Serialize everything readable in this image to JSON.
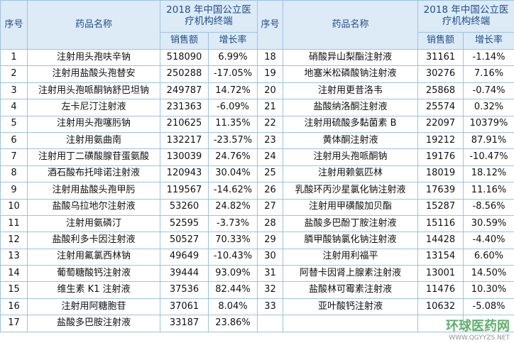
{
  "header": {
    "no": "序号",
    "name": "药品名称",
    "terminal": "2018 年中国公立医疗机构终端",
    "sales": "销售额",
    "growth": "增长率"
  },
  "left_rows": [
    [
      "1",
      "注射用头孢呋辛钠",
      518090,
      "6.99%"
    ],
    [
      "2",
      "注射用盐酸头孢替安",
      250288,
      "-17.05%"
    ],
    [
      "3",
      "注射用头孢哌酮钠舒巴坦钠",
      249787,
      "14.72%"
    ],
    [
      "4",
      "左卡尼汀注射液",
      231363,
      "-6.09%"
    ],
    [
      "5",
      "注射用头孢噻肟钠",
      210625,
      "11.35%"
    ],
    [
      "6",
      "注射用氨曲南",
      132217,
      "-23.57%"
    ],
    [
      "7",
      "注射用丁二磺酸腺苷蛋氨酸",
      130039,
      "24.76%"
    ],
    [
      "8",
      "酒石酸布托啡诺注射液",
      120943,
      "30.04%"
    ],
    [
      "9",
      "注射用盐酸头孢甲肟",
      119567,
      "-14.62%"
    ],
    [
      "10",
      "盐酸乌拉地尔注射液",
      53260,
      "24.82%"
    ],
    [
      "11",
      "注射用氨磷汀",
      52595,
      "-3.73%"
    ],
    [
      "12",
      "盐酸利多卡因注射液",
      50527,
      "70.33%"
    ],
    [
      "13",
      "注射用氟氯西林钠",
      49649,
      "-10.43%"
    ],
    [
      "14",
      "葡萄糖酸钙注射液",
      39444,
      "93.09%"
    ],
    [
      "15",
      "维生素 K1 注射液",
      37536,
      "82.44%"
    ],
    [
      "16",
      "注射用阿糖胞苷",
      37061,
      "8.04%"
    ],
    [
      "17",
      "盐酸多巴胺注射液",
      33187,
      "23.86%"
    ]
  ],
  "right_rows": [
    [
      "18",
      "硝酸异山梨酯注射液",
      31161,
      "-1.14%"
    ],
    [
      "19",
      "地塞米松磷酸钠注射液",
      30276,
      "7.16%"
    ],
    [
      "20",
      "注射用更昔洛韦",
      25868,
      "-0.74%"
    ],
    [
      "21",
      "盐酸纳洛酮注射液",
      25574,
      "0.32%"
    ],
    [
      "22",
      "注射用硫酸多黏菌素 B",
      22097,
      "10379%"
    ],
    [
      "23",
      "黄体酮注射液",
      19212,
      "87.91%"
    ],
    [
      "24",
      "注射用头孢哌酮钠",
      19176,
      "-10.47%"
    ],
    [
      "25",
      "注射用赖氨匹林",
      18019,
      "18.12%"
    ],
    [
      "26",
      "乳酸环丙沙星氯化钠注射液",
      17639,
      "11.16%"
    ],
    [
      "27",
      "注射用甲磺酸加贝酯",
      15287,
      "-8.56%"
    ],
    [
      "28",
      "盐酸多巴酚丁胺注射液",
      15116,
      "30.59%"
    ],
    [
      "29",
      "膦甲酸钠氯化钠注射液",
      14428,
      "-4.40%"
    ],
    [
      "30",
      "注射用利福平",
      13154,
      "6.60%"
    ],
    [
      "31",
      "阿替卡因肾上腺素注射液",
      13001,
      "14.50%"
    ],
    [
      "32",
      "盐酸林可霉素注射液",
      11476,
      "10.30%"
    ],
    [
      "33",
      "亚叶酸钙注射液",
      10632,
      "-5.08%"
    ]
  ],
  "watermark": {
    "brand": "环球医药网",
    "url": "WWW.QGYYZS.NET"
  }
}
